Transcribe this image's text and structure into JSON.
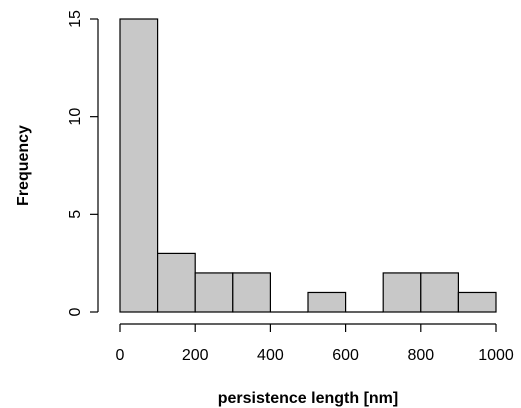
{
  "chart_data": {
    "type": "bar",
    "title": "",
    "xlabel": "persistence length [nm]",
    "ylabel": "Frequency",
    "bins": [
      {
        "x0": 0,
        "x1": 100,
        "count": 15
      },
      {
        "x0": 100,
        "x1": 200,
        "count": 3
      },
      {
        "x0": 200,
        "x1": 300,
        "count": 2
      },
      {
        "x0": 300,
        "x1": 400,
        "count": 2
      },
      {
        "x0": 400,
        "x1": 500,
        "count": 0
      },
      {
        "x0": 500,
        "x1": 600,
        "count": 1
      },
      {
        "x0": 600,
        "x1": 700,
        "count": 0
      },
      {
        "x0": 700,
        "x1": 800,
        "count": 2
      },
      {
        "x0": 800,
        "x1": 900,
        "count": 2
      },
      {
        "x0": 900,
        "x1": 1000,
        "count": 1
      }
    ],
    "xlim": [
      0,
      1000
    ],
    "ylim": [
      0,
      15
    ],
    "xticks": [
      0,
      200,
      400,
      600,
      800,
      1000
    ],
    "yticks": [
      0,
      5,
      10,
      15
    ],
    "bar_color": "#c8c8c8",
    "grid": false,
    "legend": "none"
  }
}
